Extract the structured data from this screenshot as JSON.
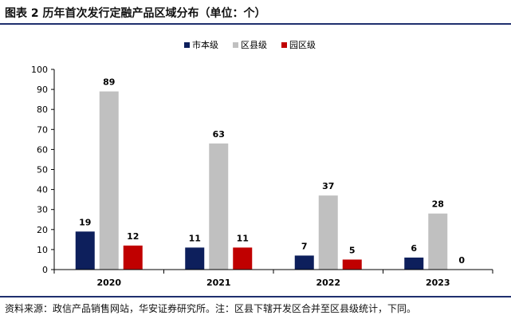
{
  "title": "图表 2  历年首次发行定融产品区域分布（单位：个）",
  "source": "资料来源：政信产品销售网站，华安证券研究所。注：区县下辖开发区合并至区县级统计，下同。",
  "chart_data": {
    "type": "bar",
    "categories": [
      "2020",
      "2021",
      "2022",
      "2023"
    ],
    "series": [
      {
        "name": "市本级",
        "color": "#0d1f5c",
        "values": [
          19,
          11,
          7,
          6
        ]
      },
      {
        "name": "区县级",
        "color": "#c0c0c0",
        "values": [
          89,
          63,
          37,
          28
        ]
      },
      {
        "name": "园区级",
        "color": "#c00000",
        "values": [
          12,
          11,
          5,
          0
        ]
      }
    ],
    "ylim": [
      0,
      100
    ],
    "yticks": [
      0,
      10,
      20,
      30,
      40,
      50,
      60,
      70,
      80,
      90,
      100
    ],
    "legend_position": "top-center",
    "grid": false
  }
}
